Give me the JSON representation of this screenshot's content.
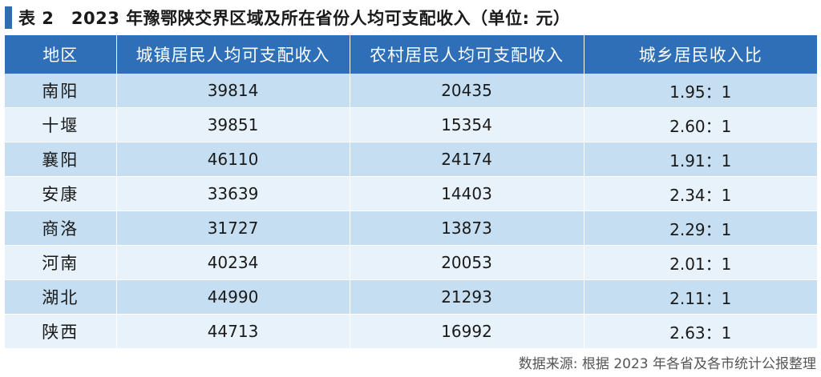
{
  "title": "表 2　2023 年豫鄂陕交界区域及所在省份人均可支配收入（单位: 元）",
  "table": {
    "headers": [
      "地区",
      "城镇居民人均可支配收入",
      "农村居民人均可支配收入",
      "城乡居民收入比"
    ],
    "rows": [
      [
        "南阳",
        "39814",
        "20435",
        "1.95：1"
      ],
      [
        "十堰",
        "39851",
        "15354",
        "2.60：1"
      ],
      [
        "襄阳",
        "46110",
        "24174",
        "1.91：1"
      ],
      [
        "安康",
        "33639",
        "14403",
        "2.34：1"
      ],
      [
        "商洛",
        "31727",
        "13873",
        "2.29：1"
      ],
      [
        "河南",
        "40234",
        "20053",
        "2.01：1"
      ],
      [
        "湖北",
        "44990",
        "21293",
        "2.11：1"
      ],
      [
        "陕西",
        "44713",
        "16992",
        "2.63：1"
      ]
    ]
  },
  "source": "数据来源: 根据 2023 年各省及各市统计公报整理",
  "colors": {
    "header_bg": "#2f6fb8",
    "row_odd": "#c5def1",
    "row_even": "#e8f2fa",
    "title_marker": "#2f6db4"
  }
}
